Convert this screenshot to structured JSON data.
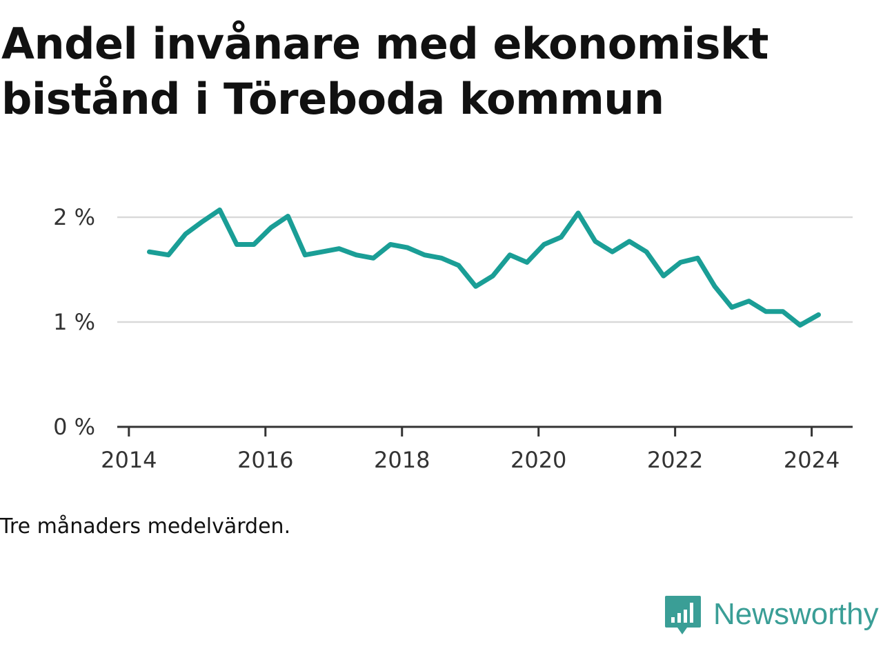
{
  "title": "Andel invånare med ekonomiskt bistånd i Töreboda kommun",
  "caption": "Tre månaders medelvärden.",
  "brand": {
    "name": "Newsworthy",
    "icon": "newsworthy-logo-icon",
    "color": "#3a9e96"
  },
  "colors": {
    "line": "#1a9e96",
    "grid": "#d9d9d9",
    "axis": "#333333",
    "text": "#111111"
  },
  "chart_data": {
    "type": "line",
    "title": "Andel invånare med ekonomiskt bistånd i Töreboda kommun",
    "xlabel": "",
    "ylabel": "",
    "xlim": [
      2013.83,
      2024.6
    ],
    "ylim": [
      0,
      2
    ],
    "y_ticks": [
      {
        "value": 0,
        "label": "0 %"
      },
      {
        "value": 1,
        "label": "1 %"
      },
      {
        "value": 2,
        "label": "2 %"
      }
    ],
    "x_ticks": [
      {
        "value": 2014,
        "label": "2014"
      },
      {
        "value": 2016,
        "label": "2016"
      },
      {
        "value": 2018,
        "label": "2018"
      },
      {
        "value": 2020,
        "label": "2020"
      },
      {
        "value": 2022,
        "label": "2022"
      },
      {
        "value": 2024,
        "label": "2024"
      }
    ],
    "grid": true,
    "series": [
      {
        "x": [
          2014.3,
          2014.58,
          2014.83,
          2015.08,
          2015.33,
          2015.58,
          2015.83,
          2016.08,
          2016.33,
          2016.58,
          2016.83,
          2017.08,
          2017.33,
          2017.58,
          2017.83,
          2018.08,
          2018.33,
          2018.58,
          2018.83,
          2019.08,
          2019.33,
          2019.58,
          2019.83,
          2020.08,
          2020.33,
          2020.58,
          2020.83,
          2021.08,
          2021.33,
          2021.58,
          2021.83,
          2022.08,
          2022.33,
          2022.58,
          2022.83,
          2023.08,
          2023.33,
          2023.58,
          2023.83,
          2024.1
        ],
        "values": [
          1.67,
          1.64,
          1.84,
          1.96,
          2.07,
          1.74,
          1.74,
          1.9,
          2.01,
          1.64,
          1.67,
          1.7,
          1.64,
          1.61,
          1.74,
          1.71,
          1.64,
          1.61,
          1.54,
          1.34,
          1.44,
          1.64,
          1.57,
          1.74,
          1.81,
          2.04,
          1.77,
          1.67,
          1.77,
          1.67,
          1.44,
          1.57,
          1.61,
          1.34,
          1.14,
          1.2,
          1.1,
          1.1,
          0.97,
          1.07
        ]
      }
    ]
  }
}
